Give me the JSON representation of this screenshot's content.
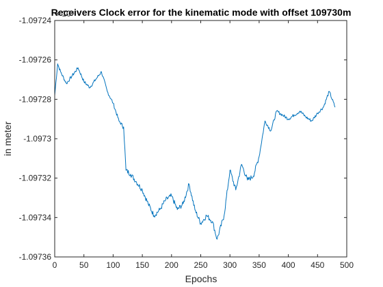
{
  "chart_data": {
    "type": "line",
    "title": "Receivers Clock error for the kinematic mode with offset 109730m",
    "xlabel": "Epochs",
    "ylabel": "in meter",
    "exponent_label": "× 10⁴",
    "xlim": [
      0,
      500
    ],
    "ylim": [
      -1.09736,
      -1.09724
    ],
    "xticks": [
      0,
      50,
      100,
      150,
      200,
      250,
      300,
      350,
      400,
      450,
      500
    ],
    "xtick_labels": [
      "0",
      "50",
      "100",
      "150",
      "200",
      "250",
      "300",
      "350",
      "400",
      "450",
      "500"
    ],
    "yticks": [
      -1.09736,
      -1.09734,
      -1.09732,
      -1.0973,
      -1.09728,
      -1.09726,
      -1.09724
    ],
    "ytick_labels": [
      "-1.09736",
      "-1.09734",
      "-1.09732",
      "-1.0973",
      "-1.09728",
      "-1.09726",
      "-1.09724"
    ],
    "grid": false,
    "line_color": "#0072BD",
    "series": [
      {
        "name": "",
        "x": [
          0,
          5,
          10,
          20,
          30,
          40,
          50,
          60,
          70,
          80,
          90,
          100,
          110,
          118,
          122,
          130,
          140,
          150,
          160,
          170,
          180,
          190,
          200,
          210,
          220,
          230,
          240,
          250,
          260,
          270,
          278,
          290,
          300,
          310,
          320,
          330,
          340,
          350,
          360,
          370,
          380,
          390,
          400,
          410,
          420,
          430,
          440,
          450,
          460,
          470,
          480
        ],
        "y": [
          -1.097278,
          -1.097262,
          -1.097266,
          -1.097272,
          -1.097268,
          -1.097264,
          -1.097271,
          -1.097274,
          -1.09727,
          -1.097266,
          -1.097276,
          -1.097282,
          -1.097291,
          -1.097294,
          -1.097316,
          -1.097318,
          -1.097322,
          -1.097326,
          -1.097333,
          -1.097339,
          -1.097336,
          -1.097331,
          -1.097329,
          -1.097336,
          -1.097333,
          -1.097323,
          -1.097336,
          -1.097343,
          -1.097339,
          -1.097342,
          -1.097351,
          -1.097339,
          -1.097316,
          -1.097326,
          -1.097313,
          -1.097321,
          -1.097319,
          -1.097309,
          -1.097291,
          -1.097296,
          -1.097286,
          -1.097288,
          -1.09729,
          -1.097288,
          -1.097286,
          -1.097289,
          -1.097291,
          -1.097287,
          -1.097284,
          -1.097276,
          -1.097284
        ]
      }
    ]
  }
}
